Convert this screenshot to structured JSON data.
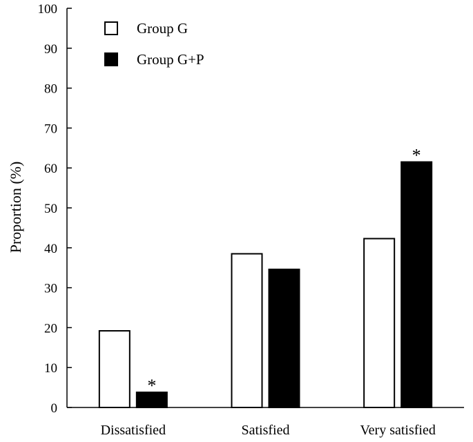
{
  "chart_data": {
    "type": "bar",
    "title": "",
    "xlabel": "",
    "ylabel": "Proportion (%)",
    "ylim": [
      0,
      100
    ],
    "yticks": [
      0,
      10,
      20,
      30,
      40,
      50,
      60,
      70,
      80,
      90,
      100
    ],
    "categories": [
      "Dissatisfied",
      "Satisfied",
      "Very satisfied"
    ],
    "series": [
      {
        "name": "Group G",
        "values": [
          19.2,
          38.5,
          42.3
        ],
        "fill": "#ffffff",
        "stroke": "#000000"
      },
      {
        "name": "Group G+P",
        "values": [
          3.8,
          34.6,
          61.5
        ],
        "fill": "#000000",
        "stroke": "#000000"
      }
    ],
    "annotations": [
      {
        "text": "*",
        "category": "Dissatisfied",
        "series": "Group G+P"
      },
      {
        "text": "*",
        "category": "Very satisfied",
        "series": "Group G+P"
      }
    ],
    "legend_position": "top-left",
    "grid": false
  }
}
